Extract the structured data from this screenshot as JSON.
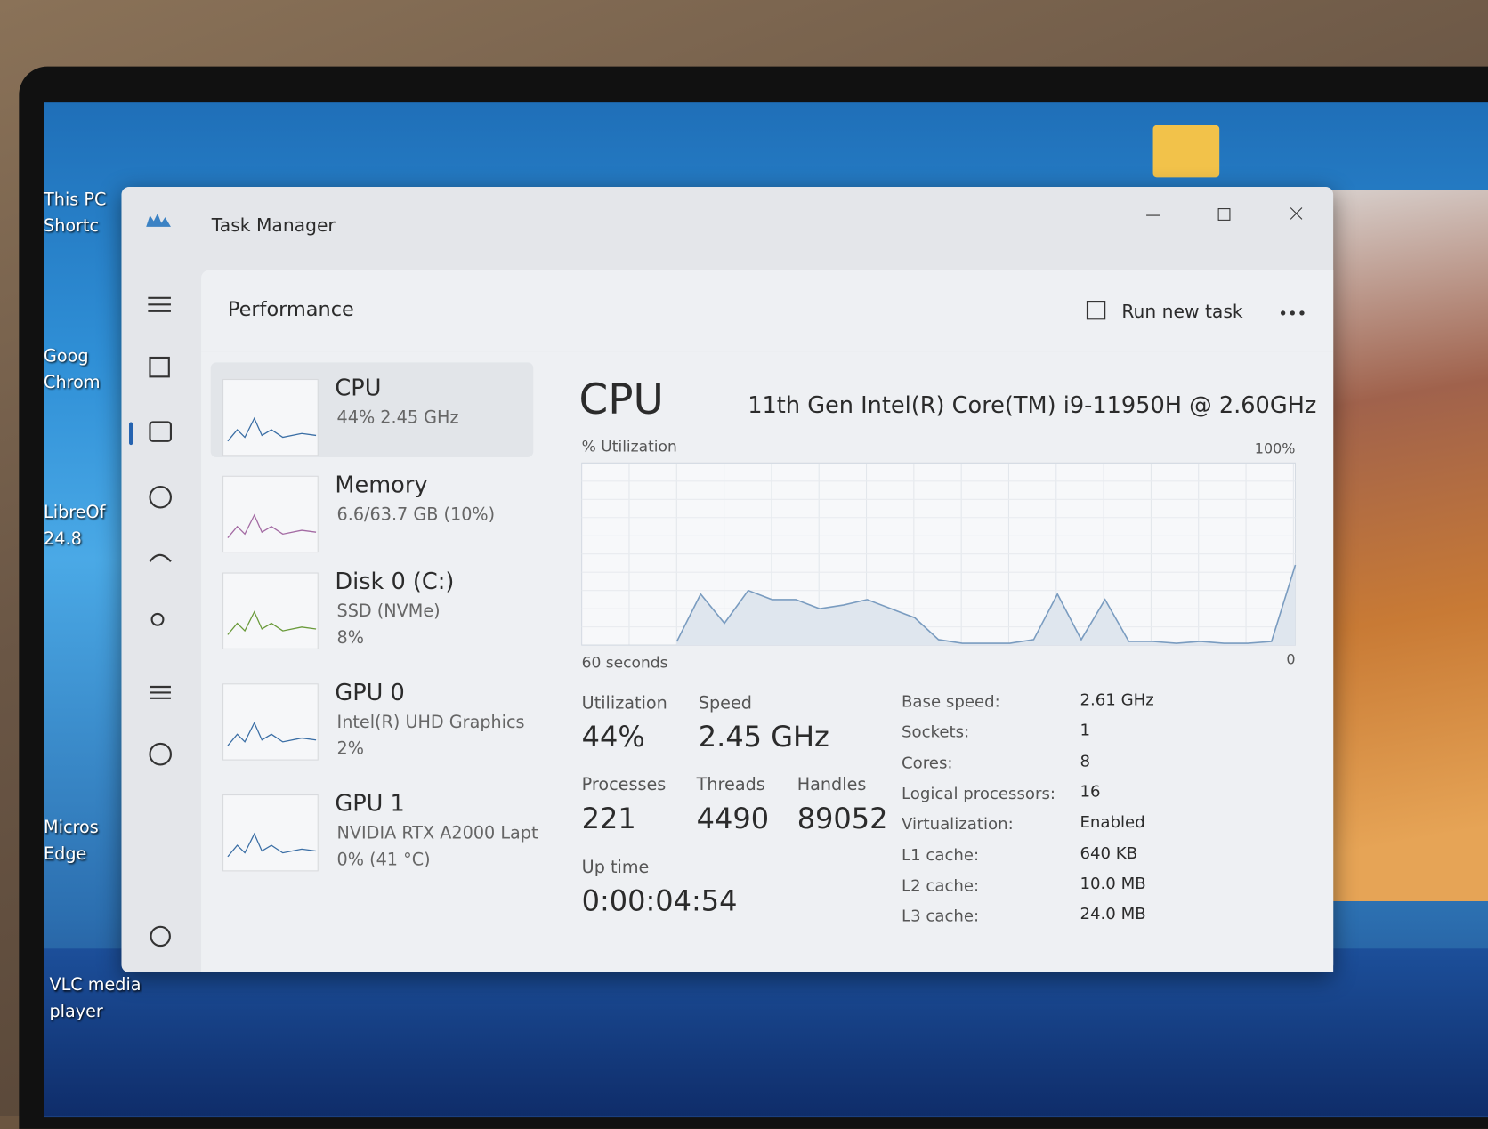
{
  "desktop_icons": [
    {
      "lines": [
        "This PC",
        "Shortc"
      ]
    },
    {
      "lines": [
        "Goog",
        "Chrom"
      ]
    },
    {
      "lines": [
        "LibreOf",
        "24.8"
      ]
    },
    {
      "lines": [
        "Micros",
        "Edge"
      ]
    },
    {
      "lines": [
        "VLC media",
        "player"
      ]
    }
  ],
  "window": {
    "title": "Task Manager"
  },
  "page": {
    "title": "Performance",
    "run_new_task": "Run new task"
  },
  "resources": [
    {
      "name": "CPU",
      "lines": [
        "44%  2.45 GHz"
      ]
    },
    {
      "name": "Memory",
      "lines": [
        "6.6/63.7 GB (10%)"
      ]
    },
    {
      "name": "Disk 0 (C:)",
      "lines": [
        "SSD (NVMe)",
        "8%"
      ]
    },
    {
      "name": "GPU 0",
      "lines": [
        "Intel(R) UHD Graphics",
        "2%"
      ]
    },
    {
      "name": "GPU 1",
      "lines": [
        "NVIDIA RTX A2000 Lapt",
        "0% (41 °C)"
      ]
    }
  ],
  "detail": {
    "title": "CPU",
    "model": "11th Gen Intel(R) Core(TM) i9-11950H @ 2.60GHz",
    "graph": {
      "y_label": "% Utilization",
      "x_label": "60 seconds",
      "ylim": [
        0,
        100
      ],
      "yticks": [
        0,
        {
          "value": 100,
          "label": "100%"
        }
      ],
      "values": [
        null,
        null,
        null,
        null,
        2,
        28,
        12,
        30,
        25,
        25,
        20,
        22,
        25,
        20,
        15,
        3,
        1,
        1,
        1,
        3,
        28,
        3,
        25,
        2,
        2,
        1,
        2,
        1,
        1,
        2,
        44
      ]
    },
    "stats": [
      {
        "label": "Utilization",
        "value": "44%"
      },
      {
        "label": "Speed",
        "value": "2.45 GHz"
      },
      {
        "label": "Processes",
        "value": "221"
      },
      {
        "label": "Threads",
        "value": "4490"
      },
      {
        "label": "Handles",
        "value": "89052"
      },
      {
        "label": "Up time",
        "value": "0:00:04:54"
      }
    ],
    "specs": [
      [
        "Base speed:",
        "2.61 GHz"
      ],
      [
        "Sockets:",
        "1"
      ],
      [
        "Cores:",
        "8"
      ],
      [
        "Logical processors:",
        "16"
      ],
      [
        "Virtualization:",
        "Enabled"
      ],
      [
        "L1 cache:",
        "640 KB"
      ],
      [
        "L2 cache:",
        "10.0 MB"
      ],
      [
        "L3 cache:",
        "24.0 MB"
      ]
    ]
  }
}
